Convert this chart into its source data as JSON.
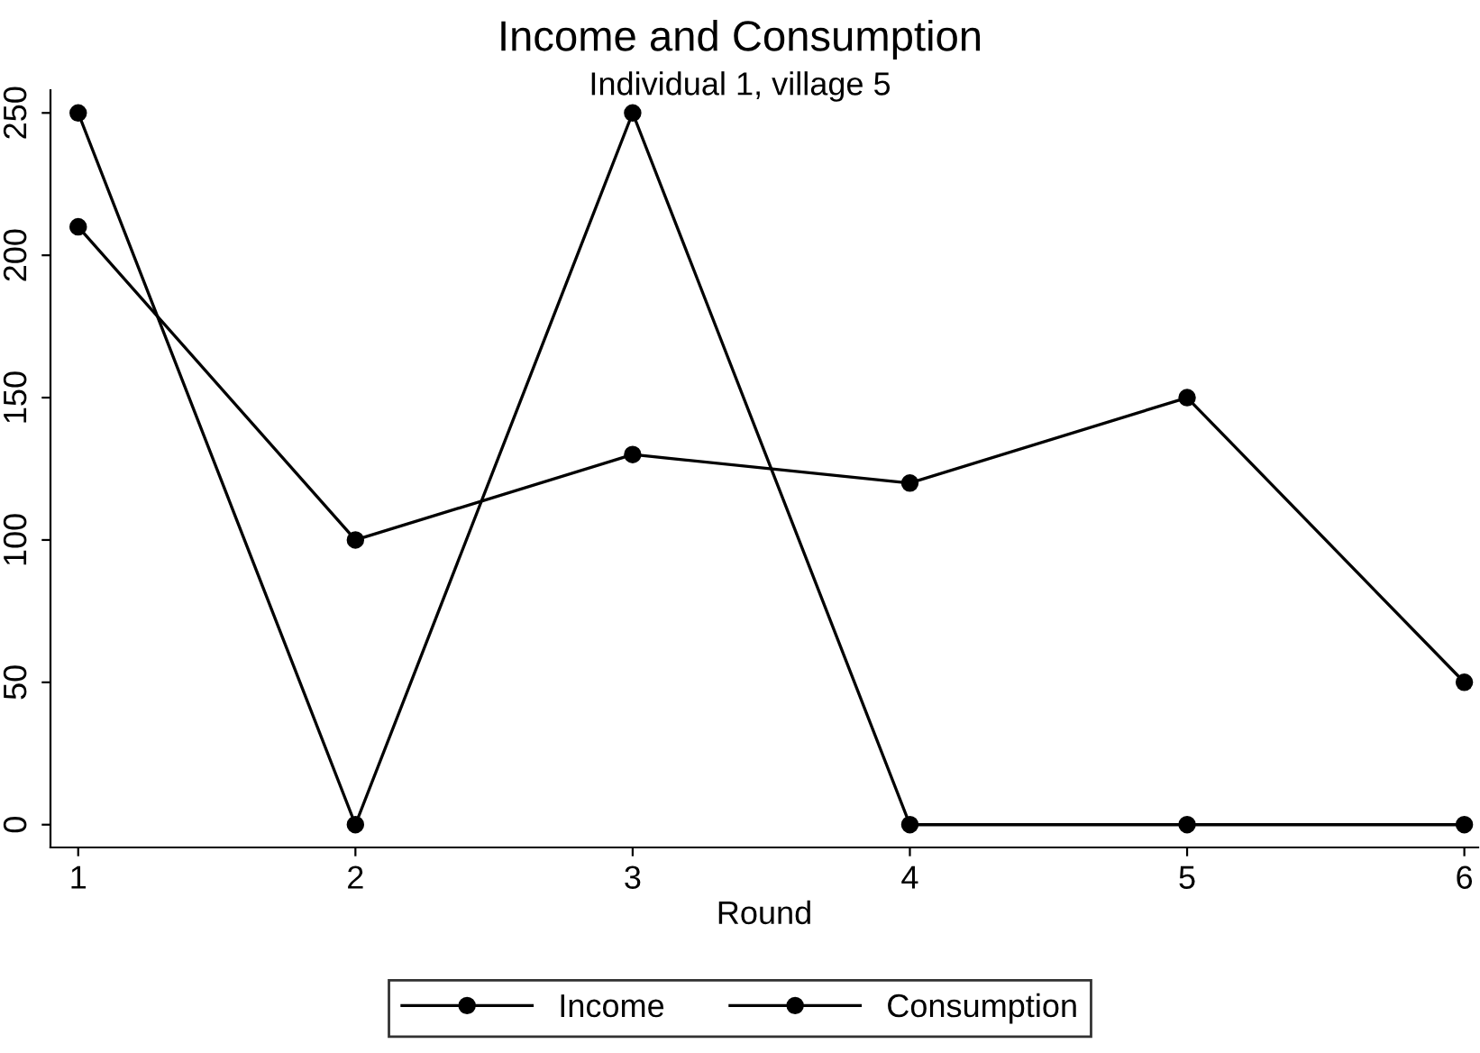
{
  "chart_data": {
    "type": "line",
    "title": "Income and Consumption",
    "subtitle": "Individual 1, village 5",
    "xlabel": "Round",
    "x": [
      1,
      2,
      3,
      4,
      5,
      6
    ],
    "series": [
      {
        "name": "Income",
        "color": "#000000",
        "values": [
          250,
          0,
          250,
          0,
          0,
          0
        ]
      },
      {
        "name": "Consumption",
        "color": "#000000",
        "values": [
          210,
          100,
          130,
          120,
          150,
          50
        ]
      }
    ],
    "xlim": [
      0.9,
      6.05
    ],
    "xticks": [
      1,
      2,
      3,
      4,
      5,
      6
    ],
    "ylim": [
      -8,
      258
    ],
    "yticks": [
      0,
      50,
      100,
      150,
      200,
      250
    ],
    "grid": false,
    "legend": "bottom",
    "marker": "circle",
    "line_style": "solid"
  }
}
